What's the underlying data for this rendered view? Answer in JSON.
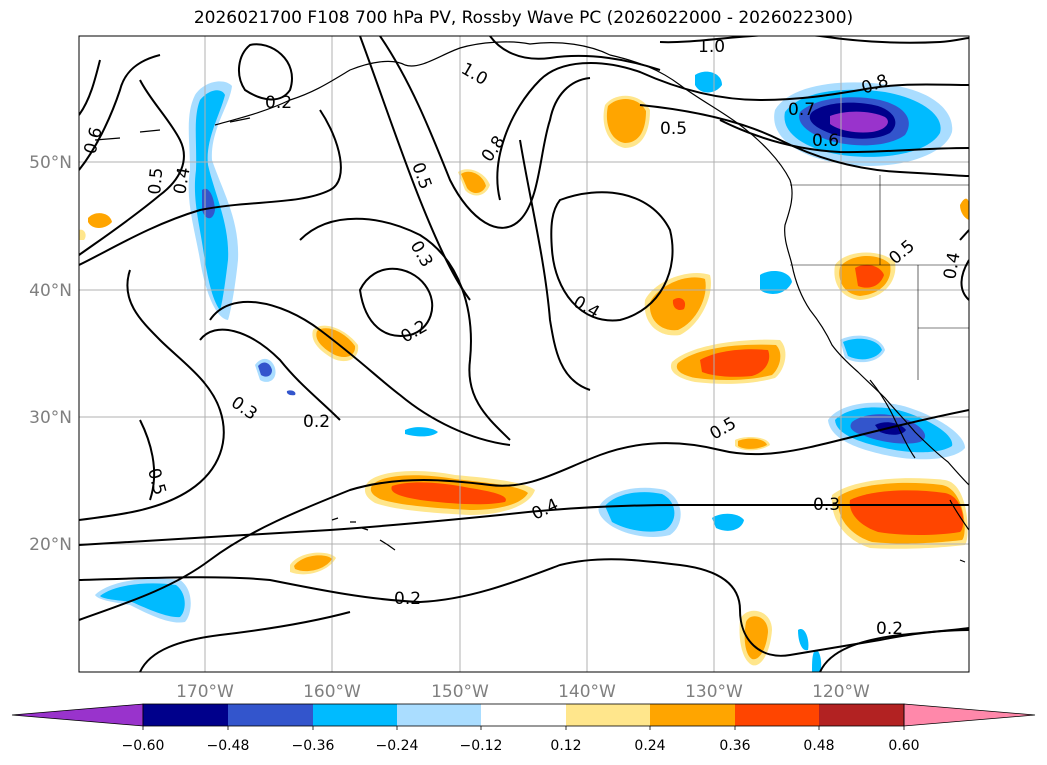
{
  "title": "2026021700 F108 700 hPa PV, Rossby Wave PC (2026022000 - 2026022300)",
  "latitude_labels": [
    "50°N",
    "40°N",
    "30°N",
    "20°N"
  ],
  "longitude_labels": [
    "170°W",
    "160°W",
    "150°W",
    "140°W",
    "130°W",
    "120°W"
  ],
  "colorbar": {
    "tick_labels": [
      "−0.60",
      "−0.48",
      "−0.36",
      "−0.24",
      "−0.12",
      "0.12",
      "0.24",
      "0.36",
      "0.48",
      "0.60"
    ],
    "colors": [
      "#9933cc",
      "#00008b",
      "#3355cc",
      "#00bbff",
      "#aaddff",
      "#ffffff",
      "#ffe68c",
      "#ffa500",
      "#ff4500",
      "#b22222",
      "#ff88aa"
    ]
  },
  "contour_labels": [
    "1.0",
    "1.0",
    "0.8",
    "0.8",
    "0.7",
    "0.6",
    "0.6",
    "0.5",
    "0.5",
    "0.5",
    "0.5",
    "0.5",
    "0.5",
    "0.4",
    "0.4",
    "0.4",
    "0.4",
    "0.3",
    "0.3",
    "0.3",
    "0.2",
    "0.2",
    "0.2",
    "0.2",
    "0.2"
  ],
  "colors": {
    "grid": "#b0b0b0",
    "contour": "#000000",
    "coast": "#000000"
  }
}
